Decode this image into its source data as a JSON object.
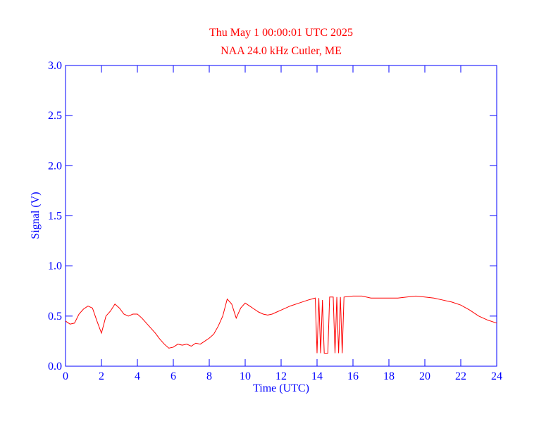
{
  "chart_data": {
    "type": "line",
    "title": "Thu May 1 00:00:01 UTC 2025",
    "subtitle": "NAA 24.0 kHz Cutler, ME",
    "x_label": "Time (UTC)",
    "y_label": "Signal (V)",
    "xlim": [
      0,
      24
    ],
    "xticks": [
      0,
      2,
      4,
      6,
      8,
      10,
      12,
      14,
      16,
      18,
      20,
      22,
      24
    ],
    "ylim": [
      0,
      3
    ],
    "yticks": [
      {
        "value": 0,
        "label": "0.0"
      },
      {
        "value": 0.5,
        "label": "0.5"
      },
      {
        "value": 1,
        "label": "1.0"
      },
      {
        "value": 1.5,
        "label": "1.5"
      },
      {
        "value": 2,
        "label": "2.0"
      },
      {
        "value": 2.5,
        "label": "2.5"
      },
      {
        "value": 3,
        "label": "3.0"
      }
    ],
    "axis_color": "#0000ff",
    "title_color": "#ff0000",
    "series": [
      {
        "color": "#ff0000",
        "x": [
          0,
          0.25,
          0.5,
          0.75,
          1,
          1.25,
          1.5,
          1.75,
          2,
          2.25,
          2.5,
          2.75,
          3,
          3.25,
          3.5,
          3.75,
          4,
          4.25,
          4.5,
          4.75,
          5,
          5.25,
          5.5,
          5.75,
          6,
          6.25,
          6.5,
          6.75,
          7,
          7.25,
          7.5,
          7.75,
          8,
          8.25,
          8.5,
          8.75,
          9,
          9.25,
          9.5,
          9.75,
          10,
          10.25,
          10.5,
          10.75,
          11,
          11.25,
          11.5,
          11.75,
          12,
          12.5,
          13,
          13.5,
          13.9,
          14,
          14.1,
          14.2,
          14.3,
          14.4,
          14.6,
          14.7,
          14.9,
          15,
          15.1,
          15.2,
          15.3,
          15.4,
          15.5,
          16,
          16.5,
          17,
          17.5,
          18,
          18.5,
          19,
          19.5,
          20,
          20.5,
          21,
          21.5,
          22,
          22.5,
          23,
          23.5,
          24
        ],
        "values": [
          0.45,
          0.42,
          0.43,
          0.52,
          0.57,
          0.6,
          0.58,
          0.45,
          0.33,
          0.5,
          0.55,
          0.62,
          0.58,
          0.52,
          0.5,
          0.52,
          0.52,
          0.48,
          0.43,
          0.38,
          0.33,
          0.27,
          0.22,
          0.18,
          0.19,
          0.22,
          0.21,
          0.22,
          0.2,
          0.23,
          0.22,
          0.25,
          0.28,
          0.32,
          0.4,
          0.5,
          0.67,
          0.62,
          0.48,
          0.58,
          0.63,
          0.6,
          0.57,
          0.54,
          0.52,
          0.51,
          0.52,
          0.54,
          0.56,
          0.6,
          0.63,
          0.66,
          0.68,
          0.13,
          0.68,
          0.13,
          0.66,
          0.13,
          0.13,
          0.69,
          0.69,
          0.13,
          0.69,
          0.13,
          0.69,
          0.13,
          0.69,
          0.7,
          0.7,
          0.68,
          0.68,
          0.68,
          0.68,
          0.69,
          0.7,
          0.69,
          0.68,
          0.66,
          0.64,
          0.61,
          0.56,
          0.5,
          0.46,
          0.43
        ]
      }
    ]
  }
}
